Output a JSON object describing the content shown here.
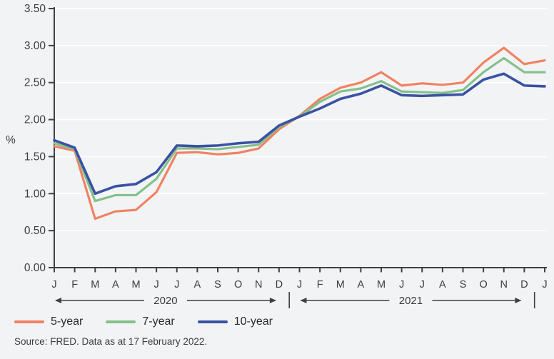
{
  "source": "Source: FRED. Data as at 17 February 2022.",
  "colors": {
    "background": "#f2f3f5",
    "gridline": "#ffffff",
    "axis": "#3f4042",
    "text": "#3c3c3f",
    "series_5yr": "#f08262",
    "series_7yr": "#85c08b",
    "series_10yr": "#3a52a3"
  },
  "chart_data": {
    "type": "line",
    "title": "",
    "xlabel": "",
    "ylabel": "%",
    "ylim": [
      0,
      3.5
    ],
    "y_tick_step": 0.5,
    "y_tick_labels": [
      "0.00",
      "0.50",
      "1.00",
      "1.50",
      "2.00",
      "2.50",
      "3.00",
      "3.50"
    ],
    "grid": "horizontal-white",
    "legend_position": "bottom-left",
    "x_categories": [
      "J",
      "F",
      "M",
      "A",
      "M",
      "J",
      "J",
      "A",
      "S",
      "O",
      "N",
      "D",
      "J",
      "F",
      "M",
      "A",
      "M",
      "J",
      "J",
      "A",
      "S",
      "O",
      "N",
      "D",
      "J"
    ],
    "year_annotations": [
      {
        "label": "2020",
        "from_index": 0,
        "to_index": 11
      },
      {
        "label": "2021",
        "from_index": 12,
        "to_index": 23
      }
    ],
    "year_separator_positions": [
      11.5,
      23.5
    ],
    "series": [
      {
        "name": "5-year",
        "color": "#f08262",
        "values": [
          1.64,
          1.58,
          0.66,
          0.76,
          0.78,
          1.02,
          1.55,
          1.56,
          1.53,
          1.55,
          1.61,
          1.87,
          2.05,
          2.28,
          2.43,
          2.5,
          2.64,
          2.46,
          2.49,
          2.47,
          2.5,
          2.77,
          2.97,
          2.75,
          2.8
        ]
      },
      {
        "name": "7-year",
        "color": "#85c08b",
        "values": [
          1.68,
          1.6,
          0.9,
          0.98,
          0.98,
          1.2,
          1.61,
          1.61,
          1.6,
          1.63,
          1.66,
          1.9,
          2.04,
          2.24,
          2.38,
          2.42,
          2.52,
          2.38,
          2.37,
          2.36,
          2.4,
          2.64,
          2.83,
          2.64,
          2.64
        ]
      },
      {
        "name": "10-year",
        "color": "#3a52a3",
        "values": [
          1.72,
          1.62,
          1.0,
          1.1,
          1.13,
          1.29,
          1.65,
          1.64,
          1.65,
          1.68,
          1.7,
          1.92,
          2.04,
          2.15,
          2.28,
          2.35,
          2.46,
          2.33,
          2.32,
          2.33,
          2.34,
          2.54,
          2.62,
          2.46,
          2.45
        ]
      }
    ]
  }
}
